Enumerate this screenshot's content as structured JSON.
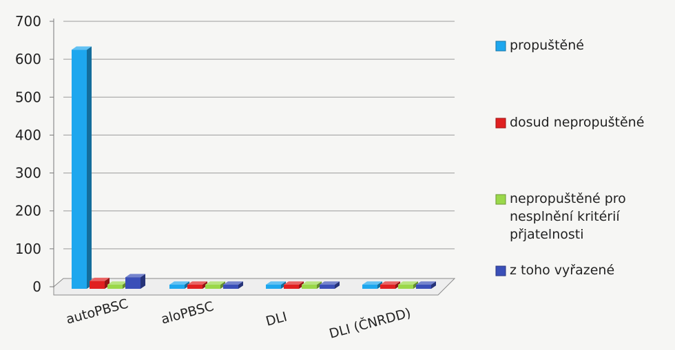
{
  "chart_data": {
    "type": "bar",
    "categories": [
      "autoPBSC",
      "aloPBSC",
      "DLI",
      "DLI (ČNRDD)"
    ],
    "series": [
      {
        "name": "propuštěné",
        "color": "#1ea7ee",
        "values": [
          625,
          2,
          5,
          5
        ]
      },
      {
        "name": "dosud nepropuštěné",
        "color": "#e02020",
        "values": [
          15,
          1,
          2,
          2
        ]
      },
      {
        "name": "nepropuštěné pro nesplnění kritérií přjatelnosti",
        "color": "#9ad84a",
        "values": [
          3,
          0,
          0,
          0
        ]
      },
      {
        "name": "z toho vyřazené",
        "color": "#3a4fb8",
        "values": [
          25,
          1,
          1,
          1
        ]
      }
    ],
    "ylim": [
      0,
      700
    ],
    "yticks": [
      0,
      100,
      200,
      300,
      400,
      500,
      600,
      700
    ],
    "grid": true,
    "legend_position": "right"
  }
}
